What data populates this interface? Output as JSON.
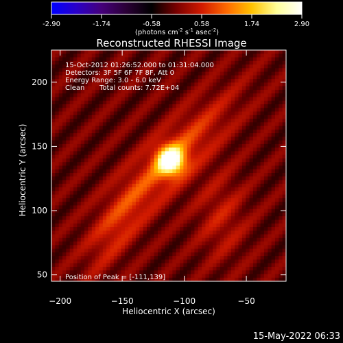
{
  "colorbar": {
    "ticks": [
      "-2.90",
      "-1.74",
      "-0.58",
      "0.58",
      "1.74",
      "2.90"
    ],
    "range": [
      -2.9,
      2.9
    ],
    "units_main": "(photons cm",
    "units_exp1": "-2",
    "units_mid": " s",
    "units_exp2": "-1",
    "units_tail": " asec",
    "units_exp3": "-2",
    "units_close": ")",
    "colors": [
      "#0000ff",
      "#2a00c8",
      "#45007a",
      "#2a0035",
      "#000000",
      "#7a0000",
      "#d11a00",
      "#ff6a00",
      "#ffc200",
      "#ffff99",
      "#ffffff"
    ]
  },
  "chart_data": {
    "type": "heatmap",
    "title": "Reconstructed RHESSI Image",
    "xlabel": "Heliocentric X (arcsec)",
    "ylabel": "Heliocentric Y (arcsec)",
    "xlim": [
      -207,
      -18
    ],
    "ylim": [
      45,
      225
    ],
    "x_ticks": [
      -200,
      -150,
      -100,
      -50
    ],
    "y_ticks": [
      50,
      100,
      150,
      200
    ],
    "peak": {
      "x": -111,
      "y": 139,
      "value": 2.9
    },
    "annotations": {
      "line1": "15-Oct-2012 01:26:52.000 to 01:31:04.000",
      "line2": "Detectors: 3F 5F 6F 7F 8F, Att 0",
      "line3": "Energy Range: 3.0 - 6.0 keV",
      "line4_a": "Clean",
      "line4_b": "Total counts: 7.72E+04",
      "peak_label": "Position of Peak = [-111,139]"
    }
  },
  "footer": {
    "timestamp": "15-May-2022 06:33"
  }
}
